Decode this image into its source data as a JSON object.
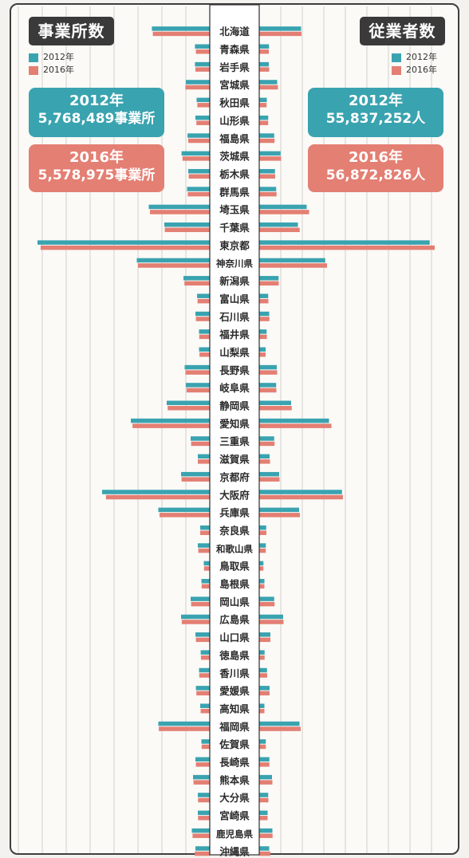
{
  "colors": {
    "c2012": "#3aa3b0",
    "c2016": "#e47f73",
    "title_bg": "#3a3a3a"
  },
  "panels": {
    "left": {
      "title": "事業所数",
      "legend": [
        "2012年",
        "2016年"
      ],
      "total_2012": {
        "year": "2012年",
        "value": "5,768,489事業所"
      },
      "total_2016": {
        "year": "2016年",
        "value": "5,578,975事業所"
      }
    },
    "right": {
      "title": "従業者数",
      "legend": [
        "2012年",
        "2016年"
      ],
      "total_2012": {
        "year": "2012年",
        "value": "55,837,252人"
      },
      "total_2016": {
        "year": "2016年",
        "value": "56,872,826人"
      }
    }
  },
  "chart_data": {
    "type": "bar",
    "orientation": "horizontal-butterfly",
    "categories": [
      "北海道",
      "青森県",
      "岩手県",
      "宮城県",
      "秋田県",
      "山形県",
      "福島県",
      "茨城県",
      "栃木県",
      "群馬県",
      "埼玉県",
      "千葉県",
      "東京都",
      "神奈川県",
      "新潟県",
      "富山県",
      "石川県",
      "福井県",
      "山梨県",
      "長野県",
      "岐阜県",
      "静岡県",
      "愛知県",
      "三重県",
      "滋賀県",
      "京都府",
      "大阪府",
      "兵庫県",
      "奈良県",
      "和歌山県",
      "鳥取県",
      "島根県",
      "岡山県",
      "広島県",
      "山口県",
      "徳島県",
      "香川県",
      "愛媛県",
      "高知県",
      "福岡県",
      "佐賀県",
      "長崎県",
      "熊本県",
      "大分県",
      "宮崎県",
      "鹿児島県",
      "沖縄県"
    ],
    "left": {
      "name": "事業所数",
      "series": [
        {
          "name": "2012年",
          "values": [
            242,
            62,
            62,
            100,
            55,
            60,
            93,
            118,
            90,
            95,
            255,
            190,
            720,
            305,
            110,
            53,
            60,
            45,
            45,
            105,
            100,
            180,
            330,
            80,
            50,
            120,
            450,
            215,
            40,
            50,
            25,
            35,
            80,
            120,
            60,
            38,
            45,
            58,
            40,
            215,
            35,
            60,
            70,
            50,
            50,
            75,
            60
          ]
        },
        {
          "name": "2016年",
          "values": [
            238,
            58,
            60,
            102,
            52,
            56,
            90,
            114,
            88,
            92,
            250,
            188,
            707,
            300,
            106,
            51,
            58,
            44,
            43,
            102,
            97,
            176,
            323,
            78,
            50,
            118,
            434,
            210,
            40,
            48,
            24,
            34,
            78,
            117,
            58,
            37,
            44,
            56,
            38,
            213,
            34,
            58,
            68,
            49,
            49,
            72,
            63
          ]
        }
      ]
    },
    "right": {
      "name": "従業者数",
      "series": [
        {
          "name": "2012年",
          "values": [
            2.1,
            0.49,
            0.48,
            0.9,
            0.38,
            0.45,
            0.75,
            1.07,
            0.79,
            0.85,
            2.38,
            1.94,
            8.55,
            3.31,
            0.97,
            0.45,
            0.5,
            0.37,
            0.32,
            0.88,
            0.85,
            1.6,
            3.5,
            0.75,
            0.52,
            1.0,
            4.15,
            2.0,
            0.35,
            0.33,
            0.21,
            0.26,
            0.75,
            1.2,
            0.56,
            0.27,
            0.39,
            0.52,
            0.26,
            2.02,
            0.33,
            0.51,
            0.64,
            0.45,
            0.42,
            0.66,
            0.5
          ]
        },
        {
          "name": "2016年",
          "values": [
            2.12,
            0.48,
            0.5,
            0.94,
            0.37,
            0.45,
            0.77,
            1.1,
            0.8,
            0.87,
            2.5,
            2.03,
            8.8,
            3.4,
            0.98,
            0.46,
            0.51,
            0.38,
            0.32,
            0.9,
            0.86,
            1.63,
            3.62,
            0.77,
            0.54,
            1.02,
            4.2,
            2.04,
            0.36,
            0.33,
            0.21,
            0.26,
            0.77,
            1.22,
            0.56,
            0.27,
            0.4,
            0.52,
            0.26,
            2.08,
            0.33,
            0.51,
            0.66,
            0.46,
            0.42,
            0.67,
            0.56
          ]
        }
      ]
    },
    "grid": true
  }
}
